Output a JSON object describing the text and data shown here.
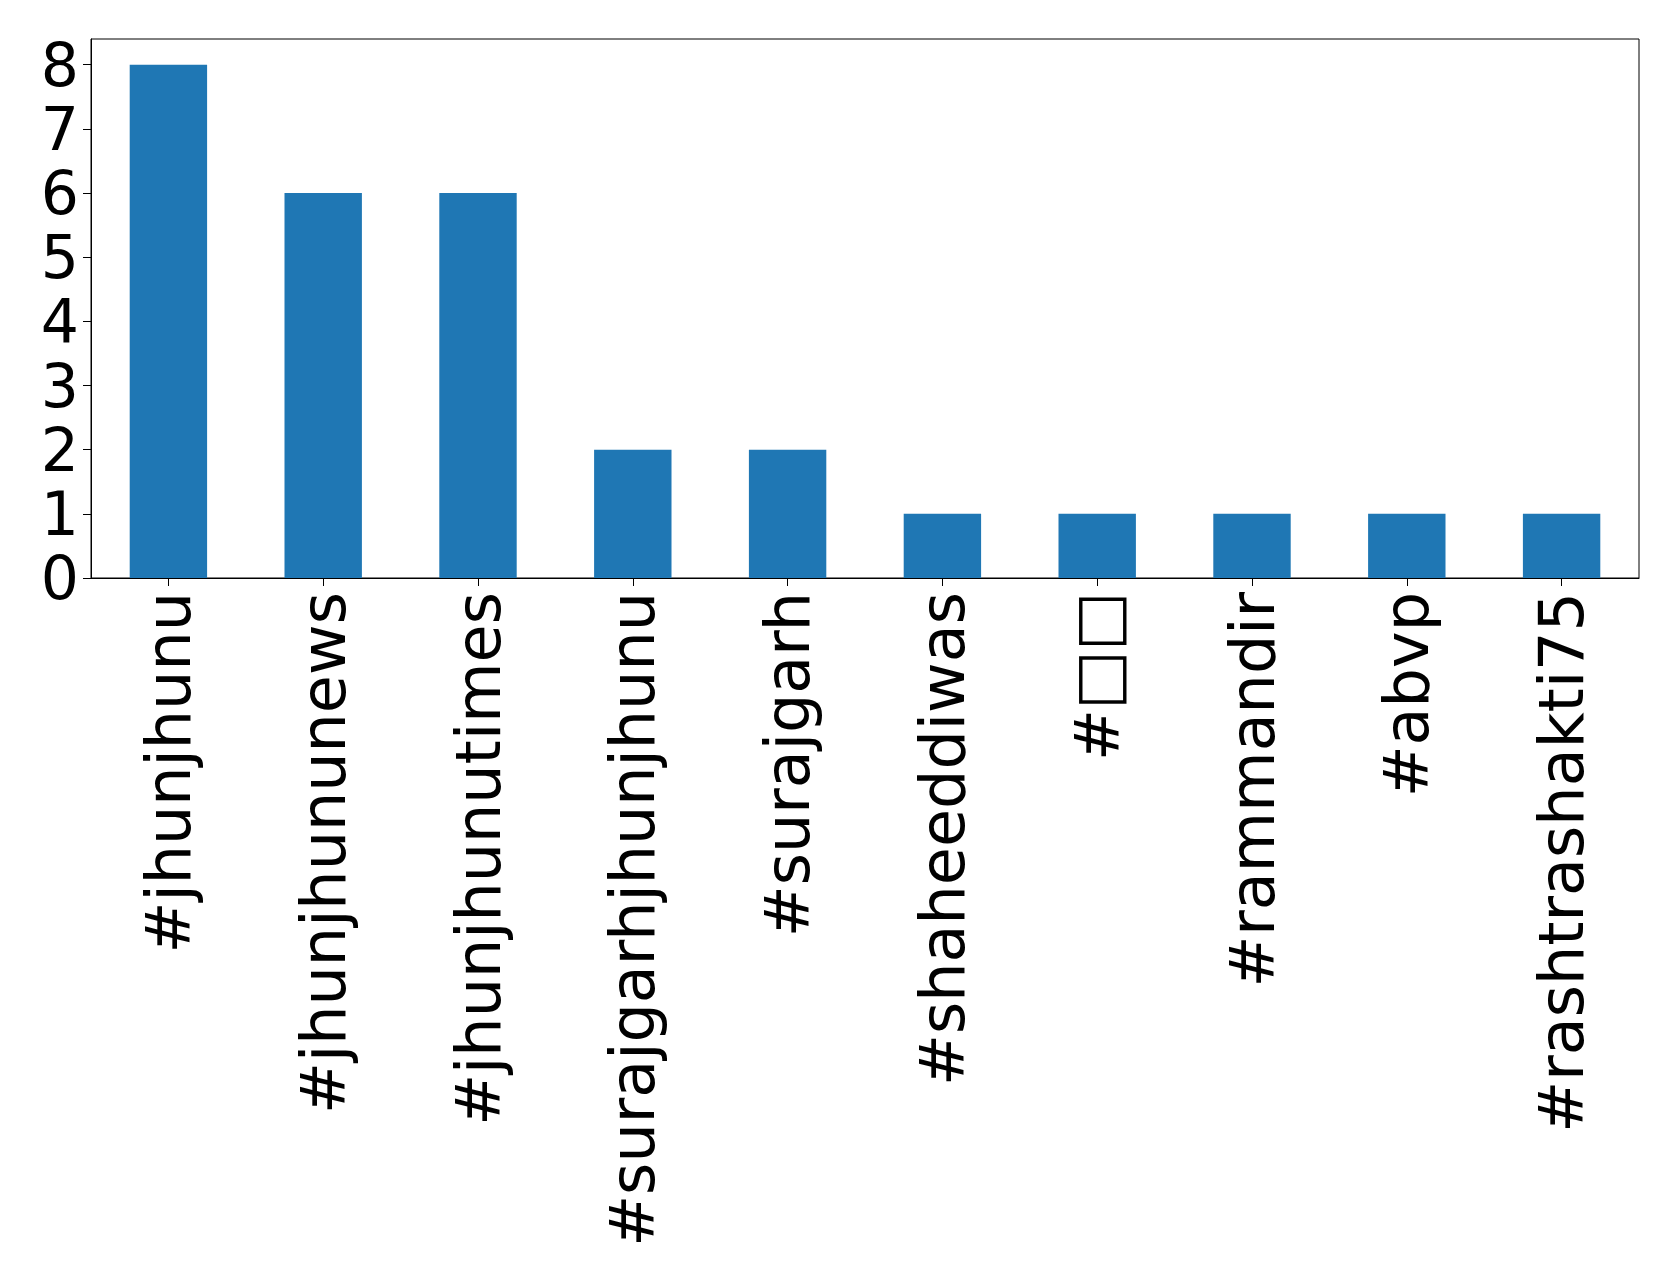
{
  "chart_data": {
    "type": "bar",
    "categories": [
      "#jhunjhunu",
      "#jhunjhununews",
      "#jhunjhunutimes",
      "#surajgarhjhunjhunu",
      "#surajgarh",
      "#shaheeddiwas",
      "#□□",
      "#rammandir",
      "#abvp",
      "#rashtrashakti75"
    ],
    "values": [
      8,
      6,
      6,
      2,
      2,
      1,
      1,
      1,
      1,
      1
    ],
    "color": "#1f77b4",
    "ylim": [
      0,
      8.4
    ],
    "yticks": [
      0,
      1,
      2,
      3,
      4,
      5,
      6,
      7,
      8
    ],
    "grid": false
  }
}
